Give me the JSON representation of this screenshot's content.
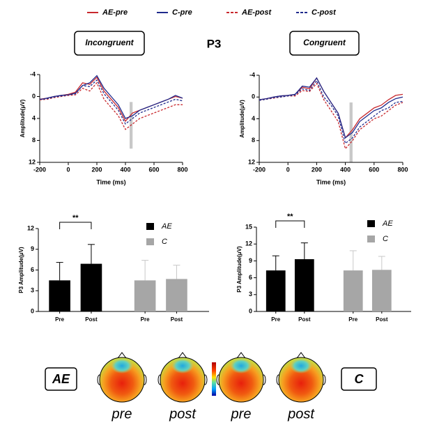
{
  "title": "P3",
  "topomaps": {
    "labels": [
      "pre",
      "post",
      "pre",
      "post"
    ],
    "groups": [
      "AE",
      "C"
    ]
  },
  "chart_data": [
    {
      "type": "line",
      "title": "Incongruent",
      "xlabel": "Time (ms)",
      "ylabel": "Amplitude(μV)",
      "x": [
        -200,
        -150,
        -100,
        -50,
        0,
        50,
        100,
        150,
        200,
        250,
        300,
        350,
        400,
        450,
        500,
        550,
        600,
        650,
        700,
        750,
        800
      ],
      "series": [
        {
          "name": "AE-pre",
          "color": "#c8282d",
          "dash": false,
          "values": [
            0.5,
            0.3,
            0,
            -0.2,
            -0.4,
            -0.8,
            -2.5,
            -2.2,
            -3.5,
            -1,
            0.5,
            2,
            4.5,
            3,
            2.5,
            2,
            1.5,
            1,
            0.5,
            0,
            0.3
          ]
        },
        {
          "name": "C-pre",
          "color": "#1f2a8c",
          "dash": false,
          "values": [
            0.6,
            0.3,
            0,
            -0.2,
            -0.3,
            -0.6,
            -2,
            -2.5,
            -3.8,
            -1.5,
            0,
            1.5,
            4,
            3.5,
            2.5,
            2,
            1.5,
            1,
            0.5,
            -0.2,
            0.3
          ]
        },
        {
          "name": "AE-post",
          "color": "#c8282d",
          "dash": true,
          "values": [
            0.6,
            0.5,
            0.2,
            0,
            -0.2,
            -0.3,
            -1.5,
            -1,
            -2.5,
            0.5,
            2,
            3.5,
            6,
            5,
            4,
            3.5,
            3,
            2.5,
            2,
            1.5,
            1.5
          ]
        },
        {
          "name": "C-post",
          "color": "#1f2a8c",
          "dash": true,
          "values": [
            0.5,
            0.4,
            0.1,
            -0.1,
            -0.3,
            -0.5,
            -2,
            -1.8,
            -3,
            -0.5,
            1,
            2.5,
            5,
            4,
            3,
            2.5,
            2,
            1.5,
            1,
            0.5,
            0.8
          ]
        }
      ],
      "highlight_x": [
        400,
        450
      ],
      "highlight_y": [
        1,
        9.5
      ],
      "xlim": [
        -200,
        800
      ],
      "xticks": [
        -200,
        0,
        200,
        400,
        600,
        800
      ],
      "ylim": [
        -4,
        12
      ],
      "yticks": [
        -4,
        0,
        4,
        8,
        12
      ],
      "y_inverted": true
    },
    {
      "type": "line",
      "title": "Congruent",
      "xlabel": "Time (ms)",
      "ylabel": "Amplitude(μV)",
      "x": [
        -200,
        -150,
        -100,
        -50,
        0,
        50,
        100,
        150,
        200,
        250,
        300,
        350,
        400,
        450,
        500,
        550,
        600,
        650,
        700,
        750,
        800
      ],
      "series": [
        {
          "name": "AE-pre",
          "color": "#c8282d",
          "dash": false,
          "values": [
            0.5,
            0.3,
            0,
            -0.2,
            -0.3,
            -0.5,
            -1.8,
            -1.5,
            -3.5,
            -1,
            1,
            3,
            7.5,
            6,
            4,
            3,
            2,
            1.5,
            0.5,
            -0.3,
            -0.5
          ]
        },
        {
          "name": "C-pre",
          "color": "#1f2a8c",
          "dash": false,
          "values": [
            0.5,
            0.3,
            0,
            -0.2,
            -0.3,
            -0.5,
            -2,
            -1.8,
            -3.5,
            -1,
            1,
            3,
            7.5,
            6.5,
            4.5,
            3.5,
            2.5,
            2,
            1,
            0.3,
            0
          ]
        },
        {
          "name": "AE-post",
          "color": "#c8282d",
          "dash": true,
          "values": [
            0.6,
            0.4,
            0.2,
            0,
            -0.2,
            -0.2,
            -1.2,
            -1,
            -2.5,
            0.5,
            2.5,
            4.5,
            9.5,
            8,
            6,
            5,
            4,
            3.5,
            2.5,
            1.5,
            1
          ]
        },
        {
          "name": "C-post",
          "color": "#1f2a8c",
          "dash": true,
          "values": [
            0.6,
            0.4,
            0.1,
            0,
            -0.2,
            -0.4,
            -1.5,
            -1.2,
            -3,
            0,
            1.5,
            3.5,
            8.5,
            7.5,
            5.5,
            4.5,
            3.5,
            2.5,
            2,
            1,
            0.8
          ]
        }
      ],
      "highlight_x": [
        400,
        450
      ],
      "highlight_y": [
        1,
        12
      ],
      "xlim": [
        -200,
        800
      ],
      "xticks": [
        -200,
        0,
        200,
        400,
        600,
        800
      ],
      "ylim": [
        -4,
        12
      ],
      "yticks": [
        -4,
        0,
        4,
        8,
        12
      ],
      "y_inverted": true
    },
    {
      "type": "bar",
      "ylabel": "P3 Amplitude(μV)",
      "categories": [
        "Pre",
        "Post"
      ],
      "series": [
        {
          "name": "AE",
          "color": "#000000",
          "values": [
            4.5,
            6.9
          ],
          "errors": [
            2.6,
            2.8
          ]
        },
        {
          "name": "C",
          "color": "#a6a6a6",
          "values": [
            4.5,
            4.7
          ],
          "errors": [
            2.9,
            2.0
          ]
        }
      ],
      "annotation": "**",
      "ylim": [
        0,
        12
      ],
      "yticks": [
        0,
        3,
        6,
        9,
        12
      ]
    },
    {
      "type": "bar",
      "ylabel": "P3 Amplitude(μV)",
      "categories": [
        "Pre",
        "Post"
      ],
      "series": [
        {
          "name": "AE",
          "color": "#000000",
          "values": [
            7.3,
            9.3
          ],
          "errors": [
            2.6,
            2.9
          ]
        },
        {
          "name": "C",
          "color": "#a6a6a6",
          "values": [
            7.3,
            7.4
          ],
          "errors": [
            3.5,
            2.4
          ]
        }
      ],
      "annotation": "**",
      "ylim": [
        0,
        15
      ],
      "yticks": [
        0,
        3,
        6,
        9,
        12,
        15
      ]
    }
  ]
}
